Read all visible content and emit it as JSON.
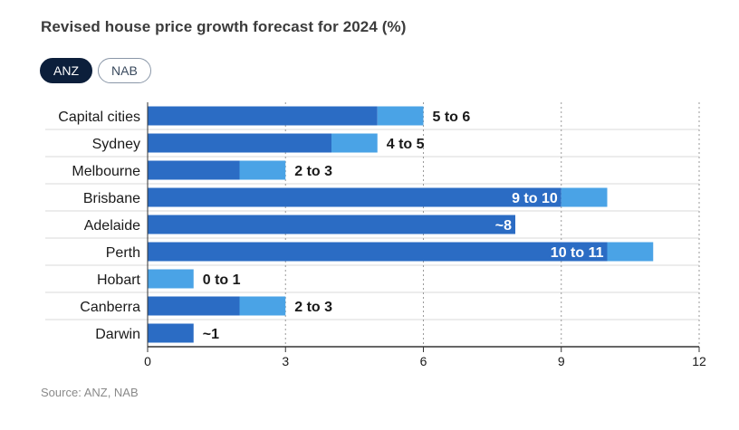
{
  "title": "Revised house price growth forecast for 2024 (%)",
  "tabs": [
    {
      "label": "ANZ",
      "active": true
    },
    {
      "label": "NAB",
      "active": false
    }
  ],
  "source": "Source: ANZ, NAB",
  "colors": {
    "low": "#2b6cc4",
    "high": "#4aa3e6",
    "tab_active": "#0c1f3b"
  },
  "chart_data": {
    "type": "bar",
    "orientation": "horizontal",
    "stacked_range": true,
    "categories": [
      "Capital cities",
      "Sydney",
      "Melbourne",
      "Brisbane",
      "Adelaide",
      "Perth",
      "Hobart",
      "Canberra",
      "Darwin"
    ],
    "series": [
      {
        "values": [
          5,
          4,
          2,
          9,
          8,
          10,
          0,
          2,
          1
        ]
      },
      {
        "values": [
          6,
          5,
          3,
          10,
          8,
          11,
          1,
          3,
          1
        ]
      }
    ],
    "value_labels": [
      "5 to 6",
      "4 to 5",
      "2 to 3",
      "9 to 10",
      "~8",
      "10 to 11",
      "0 to 1",
      "2 to 3",
      "~1"
    ],
    "label_inside": [
      false,
      false,
      false,
      true,
      true,
      true,
      false,
      false,
      false
    ],
    "xticks": [
      0,
      3,
      6,
      9,
      12
    ],
    "xlim": [
      0,
      12
    ],
    "grid": true
  }
}
